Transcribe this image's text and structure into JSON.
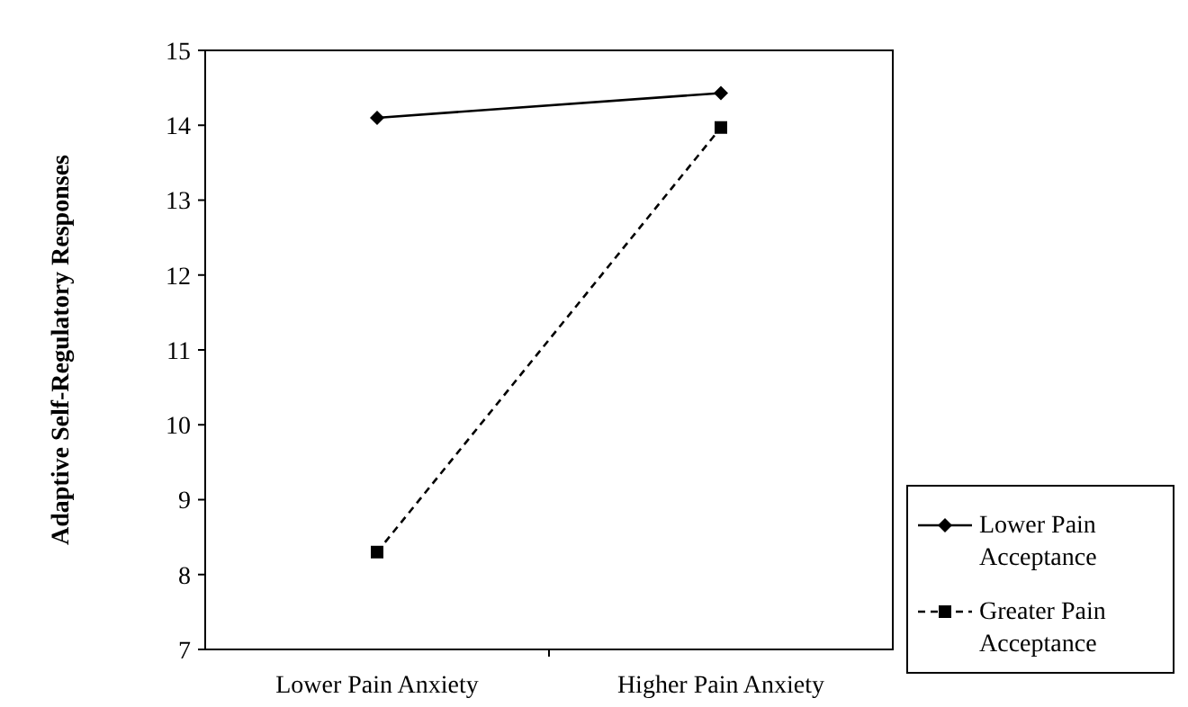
{
  "chart_data": {
    "type": "line",
    "ylabel": "Adaptive Self-Regulatory Responses",
    "categories": [
      "Lower Pain Anxiety",
      "Higher Pain Anxiety"
    ],
    "series": [
      {
        "name": "Lower Pain Acceptance",
        "color": "#000000",
        "values": [
          14.1,
          14.43
        ],
        "marker": "diamond",
        "line_style": "solid"
      },
      {
        "name": "Greater Pain Acceptance",
        "color": "#000000",
        "values": [
          8.3,
          13.97
        ],
        "marker": "square",
        "line_style": "dashed"
      }
    ],
    "ylim": [
      7,
      15
    ],
    "yticks": [
      7,
      8,
      9,
      10,
      11,
      12,
      13,
      14,
      15
    ],
    "grid": false,
    "legend": "right"
  }
}
